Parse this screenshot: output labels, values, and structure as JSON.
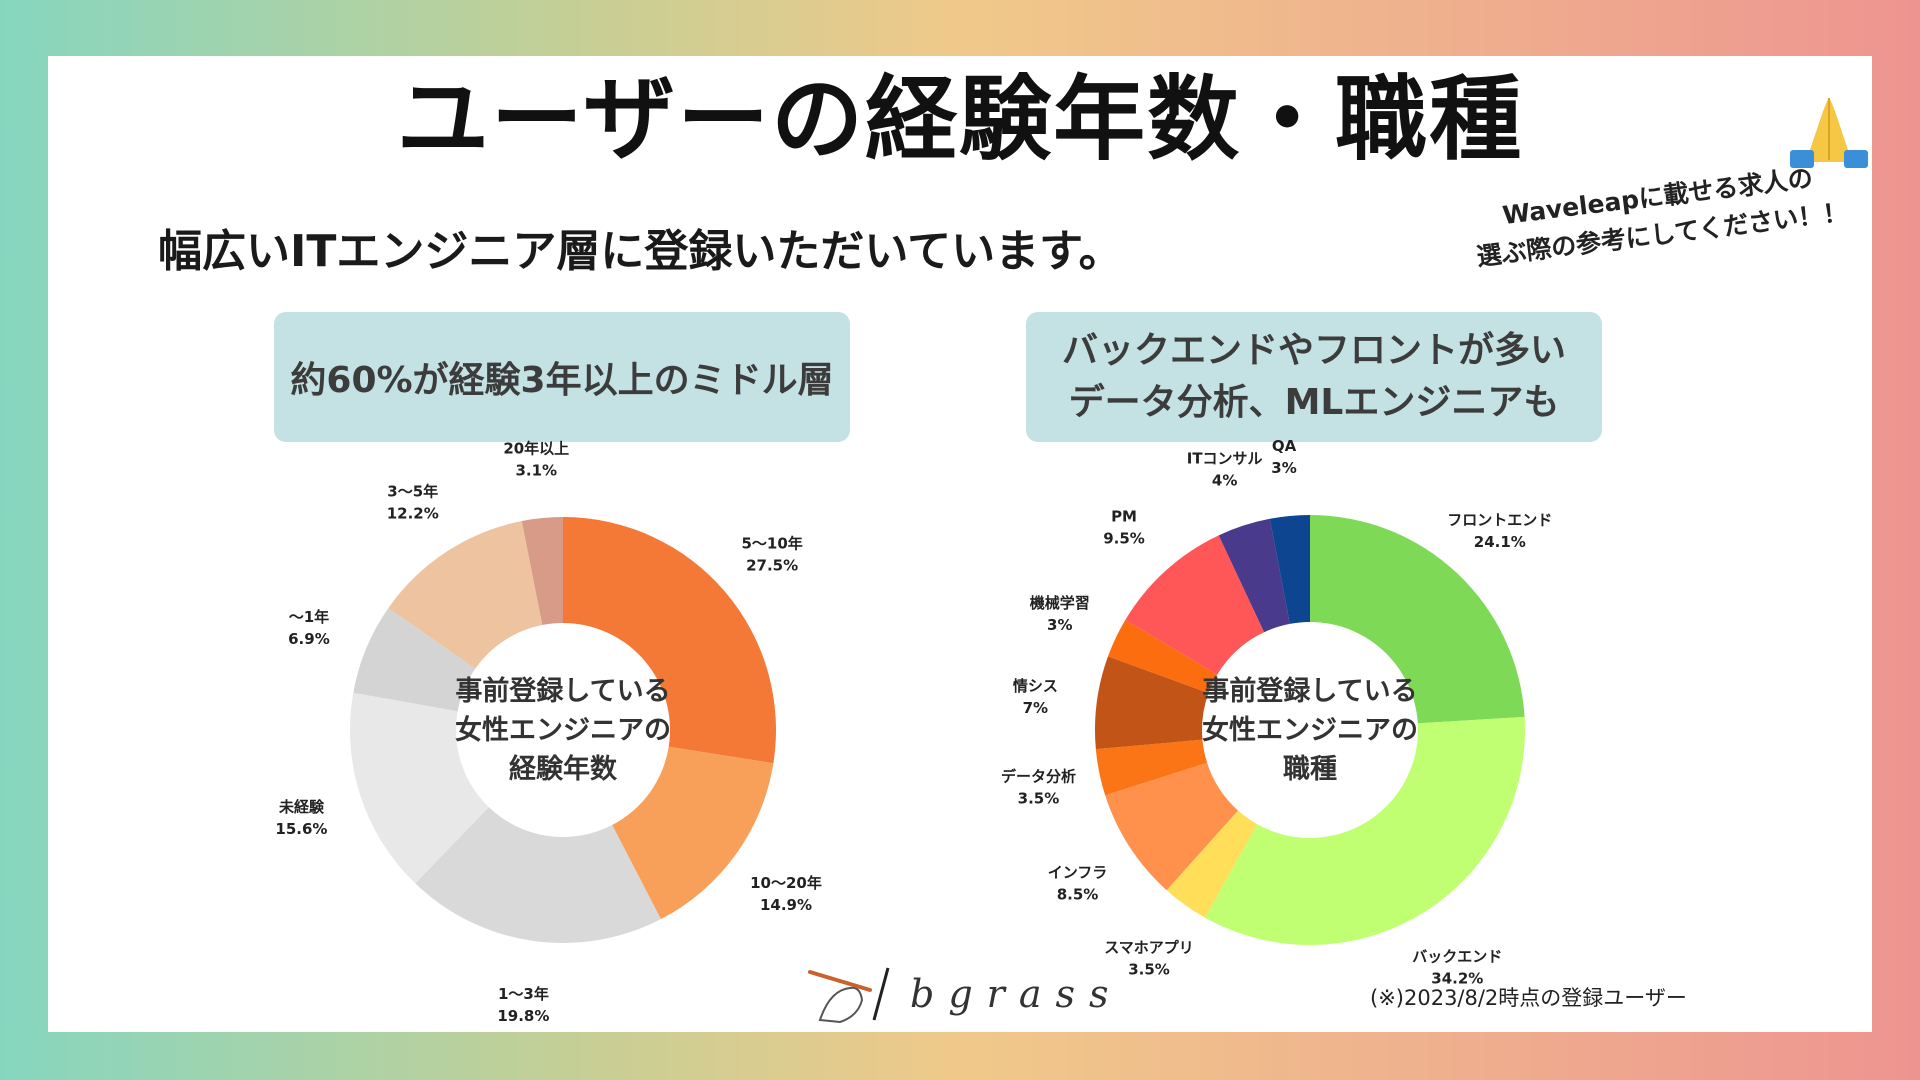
{
  "title": "ユーザーの経験年数・職種",
  "subtitle": "幅広いITエンジニア層に登録いただいています。",
  "note": {
    "line1": "Waveleapに載せる求人の",
    "line2": "選ぶ際の参考にしてください！！"
  },
  "box1": {
    "text": "約60%が経験3年以上のミドル層"
  },
  "box2": {
    "line1": "バックエンドやフロントが多い",
    "line2": "データ分析、MLエンジニアも"
  },
  "logo": {
    "text": "bgrass"
  },
  "footnote": "(※)2023/8/2時点の登録ユーザー",
  "icons": {
    "pray": "pray-hands-icon",
    "logo": "hand-feather-icon"
  },
  "chart_data": [
    {
      "type": "pie",
      "variant": "donut",
      "center_text": [
        "事前登録している",
        "女性エンジニアの",
        "経験年数"
      ],
      "slices": [
        {
          "label": "5〜10年",
          "value": 27.5,
          "display": "27.5%",
          "color": "#f57936"
        },
        {
          "label": "10〜20年",
          "value": 14.9,
          "display": "14.9%",
          "color": "#f8a05a"
        },
        {
          "label": "1〜3年",
          "value": 19.8,
          "display": "19.8%",
          "color": "#d9d9d9"
        },
        {
          "label": "未経験",
          "value": 15.6,
          "display": "15.6%",
          "color": "#e8e8e8"
        },
        {
          "label": "〜1年",
          "value": 6.9,
          "display": "6.9%",
          "color": "#d4d4d4"
        },
        {
          "label": "3〜5年",
          "value": 12.2,
          "display": "12.2%",
          "color": "#eec4a0"
        },
        {
          "label": "20年以上",
          "value": 3.1,
          "display": "3.1%",
          "color": "#d89b88"
        }
      ]
    },
    {
      "type": "pie",
      "variant": "donut",
      "center_text": [
        "事前登録している",
        "女性エンジニアの",
        "職種"
      ],
      "slices": [
        {
          "label": "フロントエンド",
          "value": 24.1,
          "display": "24.1%",
          "color": "#7ed957"
        },
        {
          "label": "バックエンド",
          "value": 34.2,
          "display": "34.2%",
          "color": "#c1ff72"
        },
        {
          "label": "スマホアプリ",
          "value": 3.5,
          "display": "3.5%",
          "color": "#ffde59"
        },
        {
          "label": "インフラ",
          "value": 8.5,
          "display": "8.5%",
          "color": "#ff914d"
        },
        {
          "label": "データ分析",
          "value": 3.5,
          "display": "3.5%",
          "color": "#fb7415"
        },
        {
          "label": "情シス",
          "value": 7,
          "display": "7%",
          "color": "#c15416"
        },
        {
          "label": "機械学習",
          "value": 3,
          "display": "3%",
          "color": "#fb6d0f"
        },
        {
          "label": "PM",
          "value": 9.5,
          "display": "9.5%",
          "color": "#ff5757"
        },
        {
          "label": "ITコンサル",
          "value": 4,
          "display": "4%",
          "color": "#4a3a8c"
        },
        {
          "label": "QA",
          "value": 3,
          "display": "3%",
          "color": "#0d4590"
        }
      ]
    }
  ]
}
